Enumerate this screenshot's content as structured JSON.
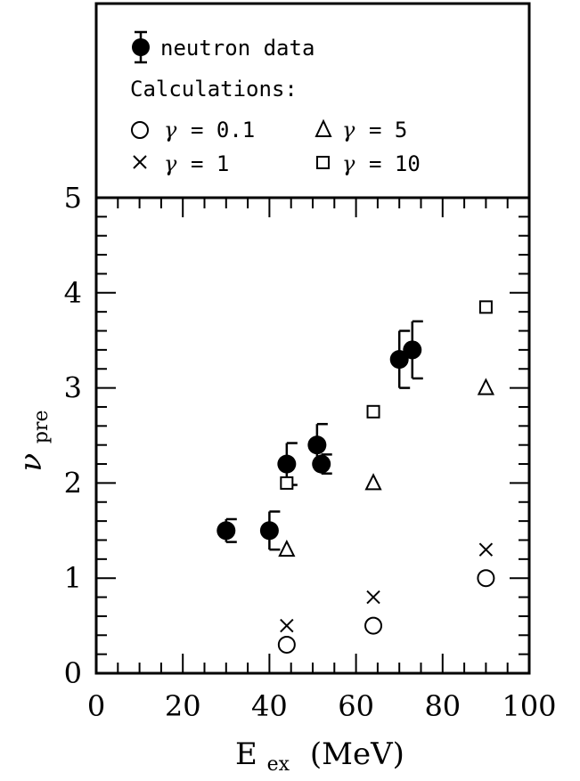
{
  "chart_data": {
    "type": "scatter",
    "title": "",
    "xlabel": "E",
    "xlabel_sub": "ex",
    "xlabel_unit": "(MeV)",
    "ylabel": "ν",
    "ylabel_sub": "pre",
    "xlim": [
      0,
      100
    ],
    "ylim": [
      0,
      5
    ],
    "x_ticks": [
      0,
      20,
      40,
      60,
      80,
      100
    ],
    "y_ticks": [
      0,
      1,
      2,
      3,
      4,
      5
    ],
    "grid": false,
    "legend_position": "top",
    "legend": {
      "data_label": "neutron data",
      "calc_heading": "Calculations:",
      "gamma_symbol": "γ",
      "entries": [
        {
          "marker": "circle",
          "label": "= 0.1"
        },
        {
          "marker": "triangle",
          "label": "= 5"
        },
        {
          "marker": "cross",
          "label": "= 1"
        },
        {
          "marker": "square",
          "label": "= 10"
        }
      ]
    },
    "series": [
      {
        "name": "neutron data",
        "marker": "filled-circle",
        "points": [
          {
            "x": 30,
            "y": 1.5,
            "err": 0.12
          },
          {
            "x": 40,
            "y": 1.5,
            "err": 0.2
          },
          {
            "x": 44,
            "y": 2.2,
            "err": 0.22
          },
          {
            "x": 51,
            "y": 2.4,
            "err": 0.22
          },
          {
            "x": 52,
            "y": 2.2,
            "err": 0.1
          },
          {
            "x": 70,
            "y": 3.3,
            "err": 0.3
          },
          {
            "x": 73,
            "y": 3.4,
            "err": 0.3
          }
        ]
      },
      {
        "name": "γ = 0.1",
        "marker": "circle",
        "points": [
          {
            "x": 44,
            "y": 0.3
          },
          {
            "x": 64,
            "y": 0.5
          },
          {
            "x": 90,
            "y": 1.0
          }
        ]
      },
      {
        "name": "γ = 1",
        "marker": "cross",
        "points": [
          {
            "x": 44,
            "y": 0.5
          },
          {
            "x": 64,
            "y": 0.8
          },
          {
            "x": 90,
            "y": 1.3
          }
        ]
      },
      {
        "name": "γ = 5",
        "marker": "triangle",
        "points": [
          {
            "x": 44,
            "y": 1.3
          },
          {
            "x": 64,
            "y": 2.0
          },
          {
            "x": 90,
            "y": 3.0
          }
        ]
      },
      {
        "name": "γ = 10",
        "marker": "square",
        "points": [
          {
            "x": 44,
            "y": 2.0
          },
          {
            "x": 64,
            "y": 2.75
          },
          {
            "x": 90,
            "y": 3.85
          }
        ]
      }
    ]
  }
}
